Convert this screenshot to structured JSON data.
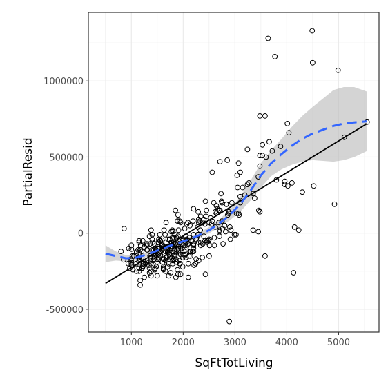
{
  "chart_data": {
    "type": "scatter",
    "xlabel": "SqFtTotLiving",
    "ylabel": "PartialResid",
    "xlim": [
      170,
      5780
    ],
    "ylim": [
      -650000,
      1450000
    ],
    "x_ticks": [
      1000,
      2000,
      3000,
      4000,
      5000
    ],
    "x_tick_labels": [
      "1000",
      "2000",
      "3000",
      "4000",
      "5000"
    ],
    "y_ticks": [
      -500000,
      0,
      500000,
      1000000
    ],
    "y_tick_labels": [
      "-500000",
      "0",
      "500000",
      "1000000"
    ],
    "grid": true,
    "background": "#ffffff",
    "colors": {
      "grid": "#ebebeb",
      "points": "#000000",
      "fit_line": "#000000",
      "smooth": "#3366ff",
      "ribbon": "#bdbdbd"
    },
    "points": [
      [
        1460,
        -230000
      ],
      [
        1560,
        -150000
      ],
      [
        1980,
        -50000
      ],
      [
        1850,
        150000
      ],
      [
        800,
        -120000
      ],
      [
        850,
        -175000
      ],
      [
        950,
        -100000
      ],
      [
        1150,
        -60000
      ],
      [
        2250,
        -170000
      ],
      [
        1030,
        -240000
      ],
      [
        1000,
        -105000
      ],
      [
        1000,
        -195000
      ],
      [
        940,
        -200000
      ],
      [
        1100,
        -130000
      ],
      [
        1220,
        -215000
      ],
      [
        1590,
        -45000
      ],
      [
        1800,
        10000
      ],
      [
        2130,
        50000
      ],
      [
        1410,
        -60000
      ],
      [
        1370,
        -160000
      ],
      [
        860,
        30000
      ],
      [
        1530,
        -100000
      ],
      [
        2000,
        -40000
      ],
      [
        1480,
        -220000
      ],
      [
        1300,
        -190000
      ],
      [
        1400,
        -10000
      ],
      [
        1800,
        -180000
      ],
      [
        1830,
        -150000
      ],
      [
        1220,
        -220000
      ],
      [
        1450,
        -240000
      ],
      [
        2500,
        -150000
      ],
      [
        1600,
        -100000
      ],
      [
        1770,
        -60000
      ],
      [
        1660,
        -120000
      ],
      [
        2100,
        -50000
      ],
      [
        1550,
        -10000
      ],
      [
        1600,
        -80000
      ],
      [
        1360,
        -70000
      ],
      [
        1200,
        -120000
      ],
      [
        1300,
        -80000
      ],
      [
        2120,
        -30000
      ],
      [
        2380,
        70000
      ],
      [
        1310,
        -110000
      ],
      [
        1710,
        -40000
      ],
      [
        2190,
        80000
      ],
      [
        1500,
        -130000
      ],
      [
        1220,
        -50000
      ],
      [
        1450,
        -160000
      ],
      [
        1500,
        -190000
      ],
      [
        1870,
        -190000
      ],
      [
        1250,
        -90000
      ],
      [
        1700,
        -130000
      ],
      [
        1050,
        -150000
      ],
      [
        990,
        -170000
      ],
      [
        1650,
        -10000
      ],
      [
        2420,
        60000
      ],
      [
        1950,
        -140000
      ],
      [
        1670,
        -160000
      ],
      [
        1180,
        -80000
      ],
      [
        1900,
        -90000
      ],
      [
        2300,
        70000
      ],
      [
        2200,
        -70000
      ],
      [
        1990,
        -160000
      ],
      [
        1750,
        -90000
      ],
      [
        1640,
        -130000
      ],
      [
        1000,
        -210000
      ],
      [
        1900,
        -20000
      ],
      [
        1600,
        -190000
      ],
      [
        1510,
        -100000
      ],
      [
        1930,
        -40000
      ],
      [
        1380,
        20000
      ],
      [
        1400,
        -40000
      ],
      [
        2420,
        -50000
      ],
      [
        1350,
        -20000
      ],
      [
        1620,
        -170000
      ],
      [
        1510,
        -140000
      ],
      [
        1740,
        -40000
      ],
      [
        1900,
        -270000
      ],
      [
        2200,
        -10000
      ],
      [
        2700,
        10000
      ],
      [
        2560,
        80000
      ],
      [
        1970,
        -100000
      ],
      [
        1820,
        -60000
      ],
      [
        1790,
        -30000
      ],
      [
        1930,
        -180000
      ],
      [
        1620,
        -90000
      ],
      [
        1380,
        -280000
      ],
      [
        1700,
        -90000
      ],
      [
        2600,
        -30000
      ],
      [
        1490,
        -150000
      ],
      [
        1130,
        -110000
      ],
      [
        2090,
        -70000
      ],
      [
        1930,
        -200000
      ],
      [
        1470,
        -110000
      ],
      [
        2500,
        -40000
      ],
      [
        2020,
        -120000
      ],
      [
        1700,
        -120000
      ],
      [
        1340,
        -210000
      ],
      [
        2030,
        30000
      ],
      [
        1100,
        -120000
      ],
      [
        1890,
        -240000
      ],
      [
        1800,
        -100000
      ],
      [
        1560,
        -50000
      ],
      [
        1150,
        -50000
      ],
      [
        2300,
        -180000
      ],
      [
        1880,
        -110000
      ],
      [
        1890,
        80000
      ],
      [
        2150,
        -120000
      ],
      [
        1740,
        -40000
      ],
      [
        1560,
        -50000
      ],
      [
        1020,
        -150000
      ],
      [
        1420,
        -180000
      ],
      [
        1670,
        -60000
      ],
      [
        2290,
        140000
      ],
      [
        1790,
        20000
      ],
      [
        2490,
        -50000
      ],
      [
        2050,
        -160000
      ],
      [
        1430,
        -110000
      ],
      [
        1700,
        -100000
      ],
      [
        1730,
        -130000
      ],
      [
        2340,
        -60000
      ],
      [
        1200,
        -160000
      ],
      [
        1950,
        70000
      ],
      [
        1500,
        -170000
      ],
      [
        1660,
        -100000
      ],
      [
        2450,
        150000
      ],
      [
        2880,
        140000
      ],
      [
        2140,
        -150000
      ],
      [
        2130,
        -120000
      ],
      [
        1700,
        -100000
      ],
      [
        1850,
        -70000
      ],
      [
        1450,
        -130000
      ],
      [
        1520,
        -60000
      ],
      [
        1670,
        70000
      ],
      [
        1780,
        -60000
      ],
      [
        1150,
        -190000
      ],
      [
        2100,
        -200000
      ],
      [
        2050,
        -20000
      ],
      [
        2500,
        70000
      ],
      [
        1740,
        -160000
      ],
      [
        2100,
        -70000
      ],
      [
        1910,
        -100000
      ],
      [
        2200,
        -80000
      ],
      [
        2590,
        200000
      ],
      [
        2700,
        20000
      ],
      [
        2820,
        10000
      ],
      [
        2060,
        -90000
      ],
      [
        2380,
        -70000
      ],
      [
        1630,
        -170000
      ],
      [
        1170,
        -110000
      ],
      [
        1940,
        -130000
      ],
      [
        1590,
        -70000
      ],
      [
        1700,
        -100000
      ],
      [
        2200,
        -120000
      ],
      [
        1840,
        -70000
      ],
      [
        1820,
        -30000
      ],
      [
        2110,
        -150000
      ],
      [
        2010,
        -140000
      ],
      [
        2200,
        -100000
      ],
      [
        1150,
        -180000
      ],
      [
        1470,
        -140000
      ],
      [
        1400,
        -110000
      ],
      [
        1720,
        -200000
      ],
      [
        1770,
        -100000
      ],
      [
        1380,
        -190000
      ],
      [
        1170,
        -340000
      ],
      [
        2100,
        -290000
      ],
      [
        1720,
        -280000
      ],
      [
        1100,
        -250000
      ],
      [
        1530,
        -130000
      ],
      [
        1380,
        -250000
      ],
      [
        1590,
        -110000
      ],
      [
        1300,
        -70000
      ],
      [
        2070,
        -40000
      ],
      [
        1380,
        -200000
      ],
      [
        1700,
        -220000
      ],
      [
        1860,
        -290000
      ],
      [
        1250,
        -290000
      ],
      [
        2620,
        140000
      ],
      [
        1910,
        -130000
      ],
      [
        1350,
        -260000
      ],
      [
        1150,
        -160000
      ],
      [
        2000,
        -80000
      ],
      [
        1360,
        -150000
      ],
      [
        1200,
        -230000
      ],
      [
        2240,
        -200000
      ],
      [
        1720,
        -190000
      ],
      [
        1950,
        -270000
      ],
      [
        1660,
        -250000
      ],
      [
        1560,
        -120000
      ],
      [
        1240,
        -200000
      ],
      [
        1990,
        -220000
      ],
      [
        1530,
        -40000
      ],
      [
        1620,
        -220000
      ],
      [
        1270,
        -200000
      ],
      [
        1590,
        -80000
      ],
      [
        1550,
        -50000
      ],
      [
        1870,
        -130000
      ],
      [
        2180,
        -120000
      ],
      [
        2400,
        -20000
      ],
      [
        1950,
        -90000
      ],
      [
        2050,
        -60000
      ],
      [
        1930,
        80000
      ],
      [
        2200,
        160000
      ],
      [
        2280,
        40000
      ],
      [
        2400,
        90000
      ],
      [
        1900,
        -100000
      ],
      [
        2250,
        -40000
      ],
      [
        2040,
        -140000
      ],
      [
        2320,
        80000
      ],
      [
        1660,
        -180000
      ],
      [
        1840,
        -10000
      ],
      [
        1420,
        -140000
      ],
      [
        1140,
        -160000
      ],
      [
        1150,
        -250000
      ],
      [
        1620,
        -240000
      ],
      [
        2090,
        70000
      ],
      [
        2460,
        -50000
      ],
      [
        1630,
        20000
      ],
      [
        2300,
        -60000
      ],
      [
        2340,
        110000
      ],
      [
        2280,
        -10000
      ],
      [
        1800,
        -90000
      ],
      [
        2210,
        -210000
      ],
      [
        1090,
        -200000
      ],
      [
        1000,
        -180000
      ],
      [
        970,
        -230000
      ],
      [
        1780,
        -160000
      ],
      [
        1820,
        -170000
      ],
      [
        1760,
        -260000
      ],
      [
        1530,
        -90000
      ],
      [
        1480,
        -110000
      ],
      [
        1910,
        -50000
      ],
      [
        1620,
        -230000
      ],
      [
        1440,
        -150000
      ],
      [
        1900,
        120000
      ],
      [
        1500,
        -280000
      ],
      [
        1840,
        -150000
      ],
      [
        2440,
        110000
      ],
      [
        1870,
        -30000
      ],
      [
        1000,
        -80000
      ],
      [
        1830,
        -110000
      ],
      [
        1710,
        -90000
      ],
      [
        1530,
        -160000
      ],
      [
        1730,
        -140000
      ],
      [
        1940,
        -200000
      ],
      [
        2070,
        -40000
      ],
      [
        1910,
        -90000
      ],
      [
        1340,
        -190000
      ],
      [
        1230,
        -200000
      ],
      [
        1150,
        -230000
      ],
      [
        1170,
        -310000
      ],
      [
        1210,
        -230000
      ],
      [
        2290,
        -10000
      ],
      [
        1770,
        10000
      ],
      [
        2330,
        20000
      ],
      [
        1810,
        -70000
      ],
      [
        2160,
        -50000
      ],
      [
        1300,
        -110000
      ],
      [
        1430,
        -170000
      ],
      [
        2510,
        -80000
      ],
      [
        2550,
        60000
      ],
      [
        2070,
        60000
      ],
      [
        1740,
        -110000
      ],
      [
        1810,
        -180000
      ],
      [
        1860,
        -170000
      ],
      [
        1460,
        -100000
      ],
      [
        1350,
        -230000
      ],
      [
        1680,
        -160000
      ],
      [
        1800,
        -200000
      ],
      [
        2050,
        -80000
      ],
      [
        2260,
        -30000
      ],
      [
        1760,
        -130000
      ],
      [
        2460,
        -60000
      ],
      [
        1620,
        -90000
      ],
      [
        2140,
        -120000
      ],
      [
        1160,
        -170000
      ],
      [
        2300,
        90000
      ],
      [
        1150,
        -130000
      ],
      [
        2430,
        210000
      ],
      [
        1910,
        20000
      ],
      [
        1800,
        -150000
      ],
      [
        2340,
        -80000
      ],
      [
        1440,
        -70000
      ],
      [
        1530,
        -170000
      ],
      [
        3480,
        770000
      ],
      [
        3640,
        1280000
      ],
      [
        3770,
        1160000
      ],
      [
        4490,
        1330000
      ],
      [
        4500,
        1120000
      ],
      [
        4990,
        1070000
      ],
      [
        5550,
        730000
      ],
      [
        5110,
        630000
      ],
      [
        4010,
        720000
      ],
      [
        4040,
        660000
      ],
      [
        3580,
        770000
      ],
      [
        3530,
        580000
      ],
      [
        3240,
        550000
      ],
      [
        3660,
        600000
      ],
      [
        3720,
        540000
      ],
      [
        3880,
        570000
      ],
      [
        3480,
        510000
      ],
      [
        3530,
        510000
      ],
      [
        3480,
        440000
      ],
      [
        3450,
        370000
      ],
      [
        2850,
        480000
      ],
      [
        2710,
        470000
      ],
      [
        2560,
        400000
      ],
      [
        3070,
        460000
      ],
      [
        3040,
        380000
      ],
      [
        3270,
        330000
      ],
      [
        3240,
        320000
      ],
      [
        3150,
        300000
      ],
      [
        3050,
        300000
      ],
      [
        3100,
        240000
      ],
      [
        2940,
        200000
      ],
      [
        2840,
        190000
      ],
      [
        2750,
        200000
      ],
      [
        2830,
        190000
      ],
      [
        2660,
        160000
      ],
      [
        2730,
        260000
      ],
      [
        2640,
        180000
      ],
      [
        2690,
        150000
      ],
      [
        2880,
        130000
      ],
      [
        2860,
        120000
      ],
      [
        2750,
        80000
      ],
      [
        2690,
        70000
      ],
      [
        2620,
        40000
      ],
      [
        2800,
        50000
      ],
      [
        2900,
        40000
      ],
      [
        3100,
        200000
      ],
      [
        3190,
        250000
      ],
      [
        3350,
        260000
      ],
      [
        3380,
        230000
      ],
      [
        3460,
        150000
      ],
      [
        3480,
        140000
      ],
      [
        3030,
        130000
      ],
      [
        3080,
        120000
      ],
      [
        3450,
        10000
      ],
      [
        3350,
        20000
      ],
      [
        3020,
        -10000
      ],
      [
        2990,
        -10000
      ],
      [
        2770,
        -70000
      ],
      [
        2710,
        150000
      ],
      [
        2740,
        210000
      ],
      [
        2910,
        -40000
      ],
      [
        2890,
        -580000
      ],
      [
        2430,
        -270000
      ],
      [
        2370,
        -160000
      ],
      [
        2600,
        -80000
      ],
      [
        2700,
        -20000
      ],
      [
        2530,
        100000
      ],
      [
        2640,
        130000
      ],
      [
        2760,
        30000
      ],
      [
        2920,
        20000
      ],
      [
        3800,
        350000
      ],
      [
        3960,
        320000
      ],
      [
        4100,
        330000
      ],
      [
        4020,
        310000
      ],
      [
        3580,
        -150000
      ],
      [
        4130,
        -260000
      ],
      [
        4150,
        40000
      ],
      [
        4230,
        20000
      ],
      [
        4520,
        310000
      ],
      [
        4300,
        270000
      ],
      [
        4920,
        190000
      ],
      [
        3960,
        340000
      ],
      [
        3600,
        500000
      ],
      [
        3100,
        400000
      ],
      [
        3070,
        130000
      ]
    ],
    "fit_line": {
      "x": [
        500,
        5550
      ],
      "y": [
        -330000,
        720000
      ]
    },
    "smooth": {
      "x": [
        500,
        700,
        900,
        1100,
        1300,
        1500,
        1700,
        1900,
        2100,
        2300,
        2500,
        2700,
        2900,
        3100,
        3300,
        3500,
        3700,
        3900,
        4100,
        4300,
        4500,
        4700,
        4900,
        5100,
        5300,
        5550
      ],
      "y": [
        -135000,
        -150000,
        -165000,
        -160000,
        -140000,
        -115000,
        -88000,
        -65000,
        -42000,
        -15000,
        20000,
        65000,
        120000,
        190000,
        280000,
        380000,
        460000,
        520000,
        575000,
        620000,
        655000,
        680000,
        705000,
        720000,
        728000,
        735000
      ],
      "lower": [
        -190000,
        -180000,
        -185000,
        -175000,
        -155000,
        -128000,
        -100000,
        -78000,
        -55000,
        -32000,
        0,
        40000,
        85000,
        140000,
        215000,
        300000,
        375000,
        420000,
        450000,
        470000,
        480000,
        475000,
        470000,
        480000,
        500000,
        540000
      ],
      "upper": [
        -80000,
        -120000,
        -145000,
        -145000,
        -125000,
        -102000,
        -76000,
        -52000,
        -29000,
        2000,
        40000,
        90000,
        155000,
        240000,
        345000,
        460000,
        545000,
        620000,
        700000,
        770000,
        830000,
        885000,
        940000,
        960000,
        960000,
        930000
      ]
    }
  }
}
